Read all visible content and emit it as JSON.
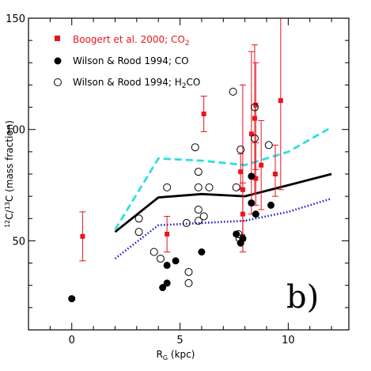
{
  "chart_data": {
    "type": "scatter",
    "xlabel": "R",
    "xlabel_sub": "G",
    "xlabel_unit": " (kpc)",
    "ylabel_sup1": "12",
    "ylabel_mid": "C/",
    "ylabel_sup2": "13",
    "ylabel_tail": "C (mass fraction)",
    "xlim": [
      -2,
      12.8
    ],
    "ylim": [
      10,
      150
    ],
    "xticks": [
      0,
      5,
      10
    ],
    "yticks": [
      50,
      100,
      150
    ],
    "grid": false,
    "legend_position": "top-left",
    "panel_label": "b)",
    "colors": {
      "boogert": "#e8141e",
      "filled": "#000000",
      "open": "#000000",
      "solid_line": "#000000",
      "cyan_line": "#2ce0e0",
      "blue_line": "#1a1acc"
    },
    "legend": [
      {
        "label": "Boogert et al. 2000; CO",
        "sub": "2",
        "marker": "red-square",
        "color": "#e8141e"
      },
      {
        "label": "Wilson & Rood 1994; CO",
        "sub": "",
        "marker": "filled-circle",
        "color": "#000000"
      },
      {
        "label": "Wilson & Rood 1994; H",
        "sub": "2",
        "tail": "CO",
        "marker": "open-circle",
        "color": "#000000"
      }
    ],
    "series": [
      {
        "name": "Boogert et al. 2000; CO2",
        "kind": "errorbar-squares",
        "points": [
          {
            "x": 0.5,
            "y": 52,
            "lo": 41,
            "hi": 63
          },
          {
            "x": 4.4,
            "y": 53,
            "lo": 45,
            "hi": 61
          },
          {
            "x": 6.1,
            "y": 107,
            "lo": 99,
            "hi": 115
          },
          {
            "x": 7.8,
            "y": 81,
            "lo": 73,
            "hi": 89
          },
          {
            "x": 7.9,
            "y": 73,
            "lo": 45,
            "hi": 120
          },
          {
            "x": 7.9,
            "y": 62,
            "lo": 50,
            "hi": 76
          },
          {
            "x": 7.9,
            "y": 52,
            "lo": 45,
            "hi": 59
          },
          {
            "x": 8.3,
            "y": 98,
            "lo": 62,
            "hi": 135
          },
          {
            "x": 8.45,
            "y": 105,
            "lo": 71,
            "hi": 138
          },
          {
            "x": 8.5,
            "y": 111,
            "lo": 82,
            "hi": 130
          },
          {
            "x": 8.5,
            "y": 78,
            "lo": 66,
            "hi": 94
          },
          {
            "x": 8.75,
            "y": 84,
            "lo": 64,
            "hi": 104
          },
          {
            "x": 9.4,
            "y": 80,
            "lo": 70,
            "hi": 93
          },
          {
            "x": 9.65,
            "y": 113,
            "lo": 73,
            "hi": 150
          }
        ]
      },
      {
        "name": "Wilson & Rood 1994; CO",
        "kind": "filled-circles",
        "points": [
          {
            "x": 0.0,
            "y": 24
          },
          {
            "x": 4.2,
            "y": 29
          },
          {
            "x": 4.4,
            "y": 31
          },
          {
            "x": 4.4,
            "y": 39
          },
          {
            "x": 4.8,
            "y": 41
          },
          {
            "x": 6.0,
            "y": 45
          },
          {
            "x": 7.6,
            "y": 53
          },
          {
            "x": 7.8,
            "y": 49
          },
          {
            "x": 7.9,
            "y": 51
          },
          {
            "x": 8.3,
            "y": 79
          },
          {
            "x": 8.3,
            "y": 67
          },
          {
            "x": 8.5,
            "y": 62
          },
          {
            "x": 9.2,
            "y": 66
          }
        ]
      },
      {
        "name": "Wilson & Rood 1994; H2CO",
        "kind": "open-circles",
        "points": [
          {
            "x": 3.1,
            "y": 60
          },
          {
            "x": 3.1,
            "y": 54
          },
          {
            "x": 3.8,
            "y": 45
          },
          {
            "x": 4.1,
            "y": 42
          },
          {
            "x": 4.4,
            "y": 74
          },
          {
            "x": 5.3,
            "y": 58
          },
          {
            "x": 5.4,
            "y": 36
          },
          {
            "x": 5.4,
            "y": 31
          },
          {
            "x": 5.7,
            "y": 92
          },
          {
            "x": 5.85,
            "y": 81
          },
          {
            "x": 5.85,
            "y": 74
          },
          {
            "x": 5.85,
            "y": 64
          },
          {
            "x": 5.85,
            "y": 59
          },
          {
            "x": 6.1,
            "y": 61
          },
          {
            "x": 6.35,
            "y": 74
          },
          {
            "x": 7.45,
            "y": 117
          },
          {
            "x": 7.6,
            "y": 74
          },
          {
            "x": 7.7,
            "y": 53
          },
          {
            "x": 7.75,
            "y": 51
          },
          {
            "x": 7.8,
            "y": 91
          },
          {
            "x": 8.45,
            "y": 110
          },
          {
            "x": 8.45,
            "y": 96
          },
          {
            "x": 9.1,
            "y": 93
          }
        ]
      },
      {
        "name": "",
        "kind": "solid-line",
        "x": [
          2,
          4,
          6,
          8,
          10,
          12
        ],
        "y": [
          54,
          69.5,
          71,
          70,
          75,
          80
        ]
      },
      {
        "name": "",
        "kind": "dashed-line",
        "x": [
          2,
          4,
          6,
          8,
          10,
          12
        ],
        "y": [
          55,
          87,
          86,
          84,
          90,
          101
        ]
      },
      {
        "name": "",
        "kind": "dotted-line",
        "x": [
          2,
          4,
          6,
          8,
          10,
          12
        ],
        "y": [
          42,
          57,
          58,
          59,
          63,
          69
        ]
      }
    ]
  }
}
